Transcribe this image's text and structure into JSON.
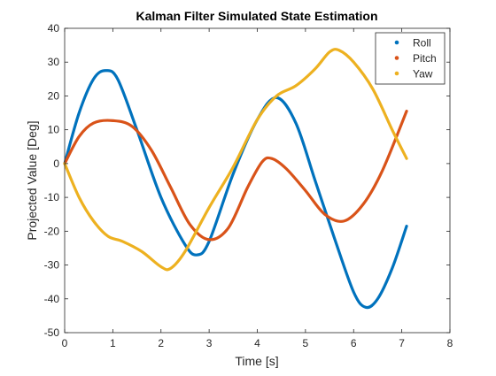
{
  "chart_data": {
    "type": "line",
    "title": "Kalman Filter Simulated State Estimation",
    "xlabel": "Time [s]",
    "ylabel": "Projected Value [Deg]",
    "xlim": [
      0,
      8
    ],
    "ylim": [
      -50,
      40
    ],
    "xticks": [
      0,
      1,
      2,
      3,
      4,
      5,
      6,
      7,
      8
    ],
    "yticks": [
      -50,
      -40,
      -30,
      -20,
      -10,
      0,
      10,
      20,
      30,
      40
    ],
    "grid": false,
    "legend": {
      "location": "top-right"
    },
    "series": [
      {
        "name": "Roll",
        "color": "#0072BD",
        "x": [
          0,
          0.3,
          0.6,
          0.85,
          1.1,
          1.5,
          2.0,
          2.5,
          2.75,
          3.0,
          3.5,
          4.0,
          4.4,
          4.8,
          5.2,
          5.6,
          6.0,
          6.25,
          6.5,
          6.8,
          7.1
        ],
        "y": [
          0,
          15,
          25,
          27.5,
          25,
          10,
          -10,
          -24,
          -27,
          -23,
          -3,
          13,
          19.5,
          12,
          -5,
          -22,
          -38,
          -42.5,
          -40,
          -31,
          -18.5
        ]
      },
      {
        "name": "Pitch",
        "color": "#D95319",
        "x": [
          0,
          0.3,
          0.6,
          1.0,
          1.4,
          1.8,
          2.2,
          2.6,
          3.0,
          3.4,
          3.8,
          4.1,
          4.3,
          4.6,
          5.0,
          5.4,
          5.8,
          6.2,
          6.6,
          7.1
        ],
        "y": [
          0,
          8,
          12,
          12.7,
          11,
          4,
          -7,
          -18,
          -22.5,
          -19,
          -7,
          0.5,
          1.5,
          -1.5,
          -8,
          -15,
          -17,
          -12,
          -2,
          15.5
        ]
      },
      {
        "name": "Yaw",
        "color": "#EDB120",
        "x": [
          0,
          0.3,
          0.6,
          0.9,
          1.2,
          1.6,
          2.0,
          2.2,
          2.5,
          3.0,
          3.5,
          4.0,
          4.4,
          4.8,
          5.2,
          5.5,
          5.7,
          6.0,
          6.4,
          6.8,
          7.1
        ],
        "y": [
          0,
          -10,
          -17,
          -21.5,
          -23,
          -26,
          -30.5,
          -31,
          -26,
          -13,
          -1,
          13,
          20,
          23,
          28,
          33,
          33.5,
          30,
          22,
          10,
          1.5
        ]
      }
    ]
  }
}
